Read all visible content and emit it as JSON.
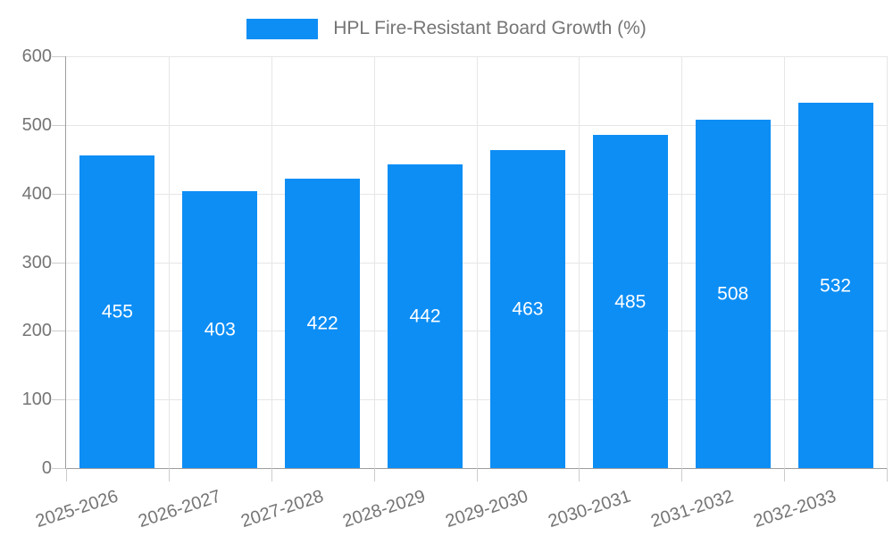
{
  "legend": {
    "label": "HPL Fire-Resistant Board Growth (%)",
    "swatch_color": "#0d8ef5"
  },
  "chart_data": {
    "type": "bar",
    "title": "HPL Fire-Resistant Board Growth (%)",
    "series_name": "HPL Fire-Resistant Board Growth (%)",
    "categories": [
      "2025-2026",
      "2026-2027",
      "2027-2028",
      "2028-2029",
      "2029-2030",
      "2030-2031",
      "2031-2032",
      "2032-2033"
    ],
    "values": [
      455,
      403,
      422,
      442,
      463,
      485,
      508,
      532
    ],
    "value_labels": [
      "455",
      "403",
      "422",
      "442",
      "463",
      "485",
      "508",
      "532"
    ],
    "xlabel": "",
    "ylabel": "",
    "ylim": [
      0,
      600
    ],
    "yticks": [
      0,
      100,
      200,
      300,
      400,
      500,
      600
    ],
    "grid": true,
    "legend_position": "top-center",
    "bar_color": "#0d8ef5",
    "value_label_color": "#ffffff",
    "axis_text_color": "#757575",
    "gridline_color": "#e6e6e6",
    "axis_line_color": "#9e9e9e",
    "x_label_rotation_deg": -18
  }
}
